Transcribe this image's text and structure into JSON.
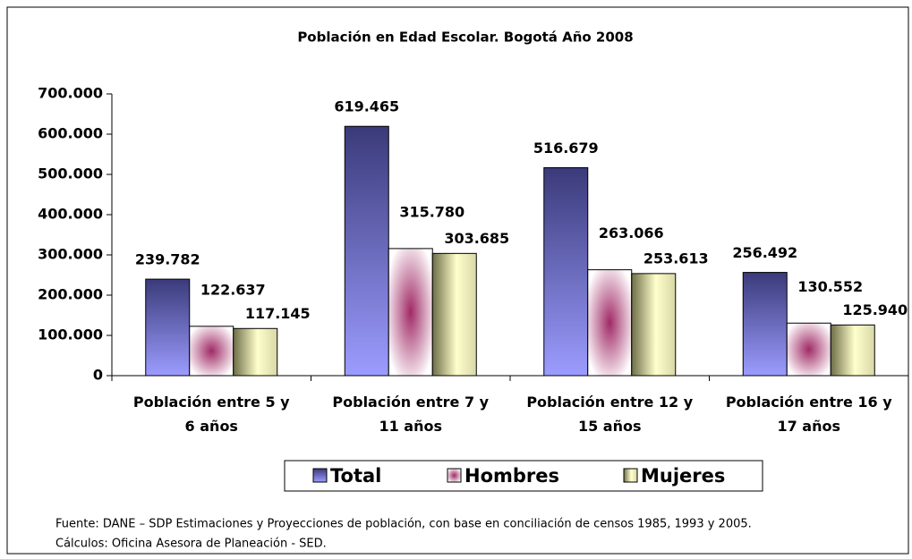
{
  "chart_data": {
    "type": "bar",
    "title": "Población en Edad Escolar. Bogotá Año 2008",
    "categories": [
      "Población entre 5 y 6 años",
      "Población entre 7 y 11 años",
      "Población entre 12 y 15 años",
      "Población entre 16 y 17 años"
    ],
    "series": [
      {
        "name": "Total",
        "color": "#3a3a7a",
        "values": [
          239782,
          619465,
          516679,
          256492
        ],
        "value_labels": [
          "239.782",
          "619.465",
          "516.679",
          "256.492"
        ]
      },
      {
        "name": "Hombres",
        "color": "#a02a66",
        "values": [
          122637,
          315780,
          263066,
          130552
        ],
        "value_labels": [
          "122.637",
          "315.780",
          "263.066",
          "130.552"
        ]
      },
      {
        "name": "Mujeres",
        "color": "#6e6e48",
        "values": [
          117145,
          303685,
          253613,
          125940
        ],
        "value_labels": [
          "117.145",
          "303.685",
          "253.613",
          "125.940"
        ]
      }
    ],
    "ylim": [
      0,
      700000
    ],
    "yticks": [
      0,
      {
        "value": 100000,
        "label": "100.000"
      },
      {
        "value": 200000,
        "label": "200.000"
      },
      {
        "value": 300000,
        "label": "300.000"
      },
      {
        "value": 400000,
        "label": "400.000"
      },
      {
        "value": 500000,
        "label": "500.000"
      },
      {
        "value": 600000,
        "label": "600.000"
      },
      {
        "value": 700000,
        "label": "700.000"
      }
    ],
    "grid": false,
    "legend": "bottom",
    "notes": [
      "Fuente: DANE – SDP Estimaciones y Proyecciones de población, con base en conciliación de censos 1985, 1993 y 2005.",
      "Cálculos: Oficina Asesora de Planeación - SED."
    ]
  }
}
